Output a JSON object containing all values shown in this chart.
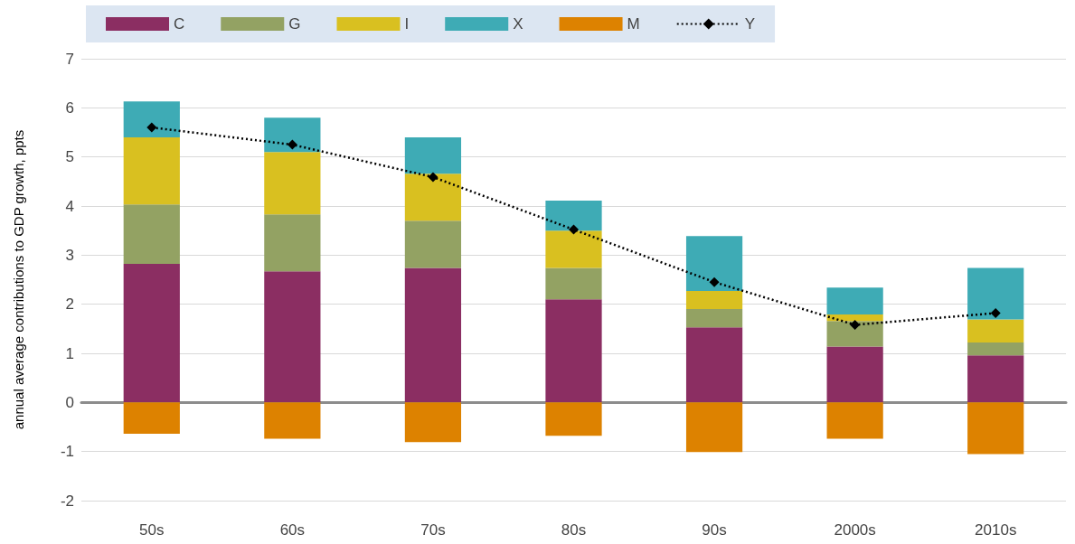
{
  "chart_data": {
    "type": "bar",
    "stacked": true,
    "ylabel": "annual average contributions to GDP growth, ppts",
    "categories": [
      "50s",
      "60s",
      "70s",
      "80s",
      "90s",
      "2000s",
      "2010s"
    ],
    "series": [
      {
        "name": "C",
        "color": "#8b2e62",
        "values": [
          2.82,
          2.67,
          2.74,
          2.1,
          1.53,
          1.14,
          0.96
        ]
      },
      {
        "name": "G",
        "color": "#93a263",
        "values": [
          1.21,
          1.16,
          0.96,
          0.64,
          0.37,
          0.52,
          0.26
        ]
      },
      {
        "name": "I",
        "color": "#d9c020",
        "values": [
          1.37,
          1.27,
          0.96,
          0.76,
          0.37,
          0.13,
          0.47
        ]
      },
      {
        "name": "X",
        "color": "#3eabb5",
        "values": [
          0.73,
          0.7,
          0.74,
          0.61,
          1.12,
          0.55,
          1.05
        ]
      },
      {
        "name": "M",
        "color": "#dd8200",
        "values": [
          -0.64,
          -0.74,
          -0.81,
          -0.68,
          -1.01,
          -0.74,
          -1.05
        ]
      },
      {
        "name": "Y",
        "type": "line",
        "color": "#000000",
        "marker": "diamond",
        "line_style": "dotted",
        "values": [
          5.6,
          5.25,
          4.59,
          3.52,
          2.45,
          1.58,
          1.82
        ]
      }
    ],
    "ylim": [
      -2,
      7
    ],
    "yticks": [
      -2,
      -1,
      0,
      1,
      2,
      3,
      4,
      5,
      6,
      7
    ],
    "grid": "y",
    "legend": "top"
  }
}
